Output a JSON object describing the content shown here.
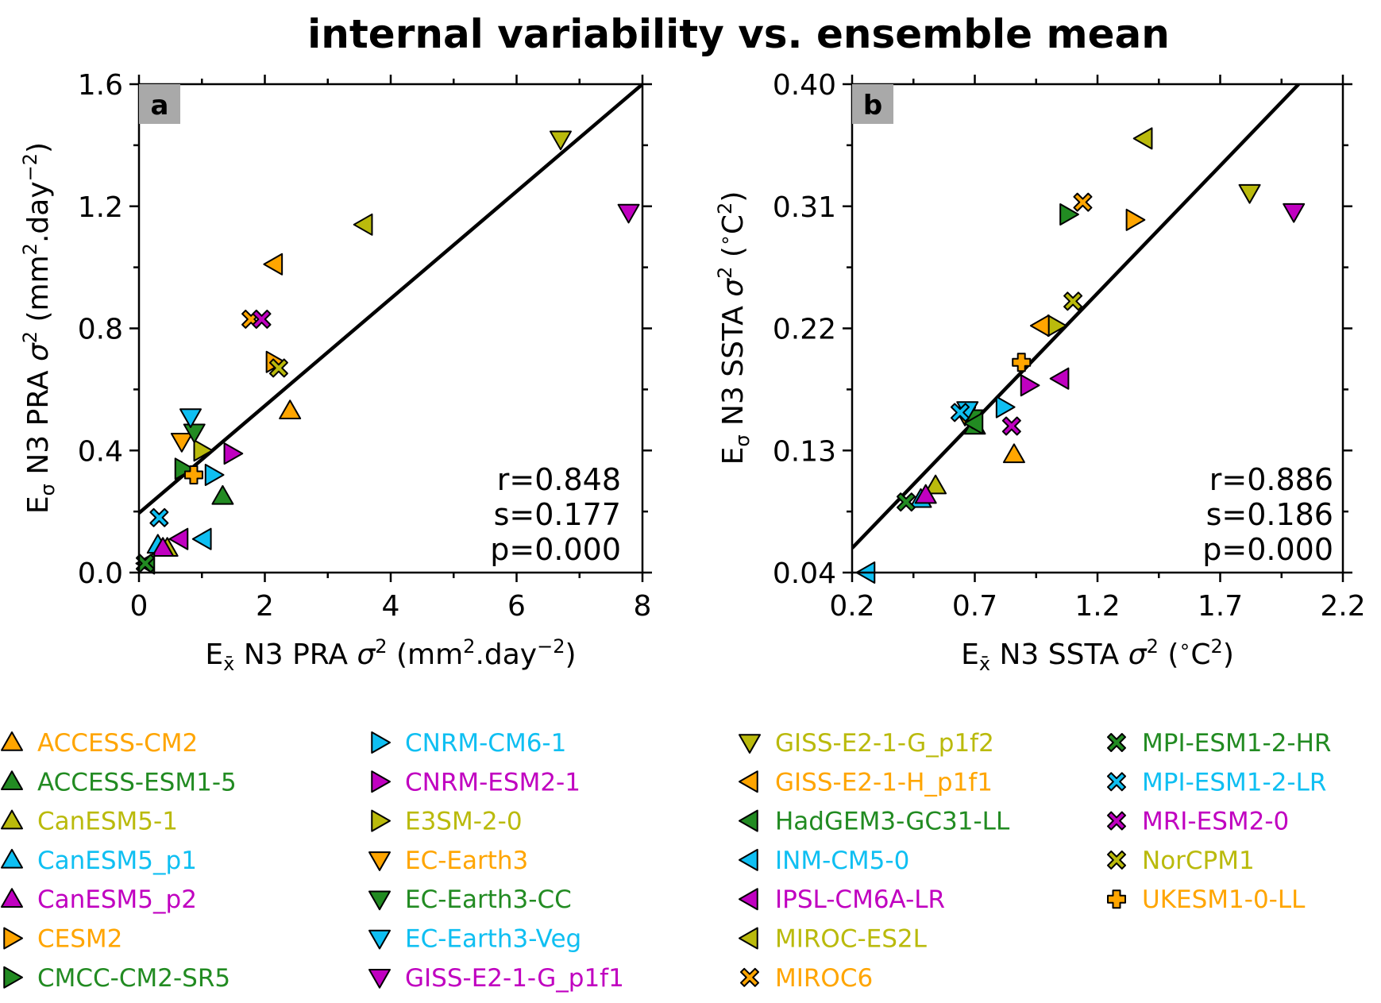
{
  "figure": {
    "title": "internal variability vs. ensemble mean",
    "colors": {
      "orange": "#FFA500",
      "green": "#228B22",
      "olive": "#BABA0C",
      "cyan": "#0FBFF2",
      "magenta": "#C000C0"
    },
    "panels": [
      {
        "letter": "a",
        "xlabel_main": "E",
        "xlabel_sub": "x̄",
        "xlabel_rest": " N3 PRA ",
        "xlabel_sigma": "σ",
        "xlabel_sup": "2",
        "xlabel_units_pre": " (mm",
        "xlabel_units_sup": "2",
        "xlabel_units_mid": ".day",
        "xlabel_units_sup2": "−2",
        "xlabel_units_post": ")",
        "ylabel_main": "E",
        "ylabel_sub": "σ",
        "ylabel_rest": " N3 PRA ",
        "ylabel_sigma": "σ",
        "ylabel_sup": "2",
        "ylabel_units_pre": " (mm",
        "ylabel_units_sup": "2",
        "ylabel_units_mid": ".day",
        "ylabel_units_sup2": "−2",
        "ylabel_units_post": ")",
        "stats": {
          "r": "r=0.848",
          "s": "s=0.177",
          "p": "p=0.000"
        },
        "xticks": [
          "0",
          "2",
          "4",
          "6",
          "8"
        ],
        "yticks": [
          "0.0",
          "0.4",
          "0.8",
          "1.2",
          "1.6"
        ]
      },
      {
        "letter": "b",
        "xlabel_main": "E",
        "xlabel_sub": "x̄",
        "xlabel_rest": " N3 SSTA ",
        "xlabel_sigma": "σ",
        "xlabel_sup": "2",
        "xlabel_units_pre": " (",
        "xlabel_units_sup": "∘",
        "xlabel_units_mid": "C",
        "xlabel_units_sup2": "2",
        "xlabel_units_post": ")",
        "ylabel_main": "E",
        "ylabel_sub": "σ",
        "ylabel_rest": " N3 SSTA ",
        "ylabel_sigma": "σ",
        "ylabel_sup": "2",
        "ylabel_units_pre": " (",
        "ylabel_units_sup": "∘",
        "ylabel_units_mid": "C",
        "ylabel_units_sup2": "2",
        "ylabel_units_post": ")",
        "stats": {
          "r": "r=0.886",
          "s": "s=0.186",
          "p": "p=0.000"
        },
        "xticks": [
          "0.2",
          "0.7",
          "1.2",
          "1.7",
          "2.2"
        ],
        "yticks": [
          "0.04",
          "0.13",
          "0.22",
          "0.31",
          "0.40"
        ]
      }
    ]
  },
  "chart_data": [
    {
      "type": "scatter",
      "panel": "a",
      "xlim": [
        0,
        8
      ],
      "ylim": [
        0,
        1.6
      ],
      "xticks": [
        0,
        2,
        4,
        6,
        8
      ],
      "yticks": [
        0,
        0.4,
        0.8,
        1.2,
        1.6
      ],
      "fit_line": {
        "x": [
          0,
          8
        ],
        "y": [
          0.195,
          1.6
        ]
      },
      "points": [
        {
          "model": "ACCESS-CM2",
          "x": 2.4,
          "y": 0.53
        },
        {
          "model": "ACCESS-ESM1-5",
          "x": 1.33,
          "y": 0.25
        },
        {
          "model": "CanESM5-1",
          "x": 0.45,
          "y": 0.08
        },
        {
          "model": "CanESM5_p1",
          "x": 0.3,
          "y": 0.09
        },
        {
          "model": "CanESM5_p2",
          "x": 0.38,
          "y": 0.08
        },
        {
          "model": "CESM2",
          "x": 2.15,
          "y": 0.69
        },
        {
          "model": "CMCC-CM2-SR5",
          "x": 0.7,
          "y": 0.34
        },
        {
          "model": "CNRM-CM6-1",
          "x": 1.18,
          "y": 0.32
        },
        {
          "model": "CNRM-ESM2-1",
          "x": 1.48,
          "y": 0.39
        },
        {
          "model": "E3SM-2-0",
          "x": 1.0,
          "y": 0.4
        },
        {
          "model": "EC-Earth3",
          "x": 0.68,
          "y": 0.43
        },
        {
          "model": "EC-Earth3-CC",
          "x": 0.88,
          "y": 0.46
        },
        {
          "model": "EC-Earth3-Veg",
          "x": 0.82,
          "y": 0.51
        },
        {
          "model": "GISS-E2-1-G_p1f1",
          "x": 7.78,
          "y": 1.18
        },
        {
          "model": "GISS-E2-1-G_p1f2",
          "x": 6.7,
          "y": 1.42
        },
        {
          "model": "GISS-E2-1-H_p1f1",
          "x": 2.15,
          "y": 1.01
        },
        {
          "model": "HadGEM3-GC31-LL",
          "x": 0.12,
          "y": 0.03
        },
        {
          "model": "INM-CM5-0",
          "x": 1.02,
          "y": 0.11
        },
        {
          "model": "IPSL-CM6A-LR",
          "x": 0.65,
          "y": 0.11
        },
        {
          "model": "MIROC-ES2L",
          "x": 3.58,
          "y": 1.14
        },
        {
          "model": "MIROC6",
          "x": 1.78,
          "y": 0.83
        },
        {
          "model": "MPI-ESM1-2-HR",
          "x": 0.1,
          "y": 0.03
        },
        {
          "model": "MPI-ESM1-2-LR",
          "x": 0.32,
          "y": 0.18
        },
        {
          "model": "MRI-ESM2-0",
          "x": 1.95,
          "y": 0.83
        },
        {
          "model": "NorCPM1",
          "x": 2.22,
          "y": 0.67
        },
        {
          "model": "UKESM1-0-LL",
          "x": 0.87,
          "y": 0.32
        }
      ]
    },
    {
      "type": "scatter",
      "panel": "b",
      "xlim": [
        0.2,
        2.2
      ],
      "ylim": [
        0.04,
        0.4
      ],
      "xticks": [
        0.2,
        0.7,
        1.2,
        1.7,
        2.2
      ],
      "yticks": [
        0.04,
        0.13,
        0.22,
        0.31,
        0.4
      ],
      "fit_line": {
        "x": [
          0.2,
          2.02
        ],
        "y": [
          0.058,
          0.4
        ]
      },
      "points": [
        {
          "model": "ACCESS-CM2",
          "x": 0.86,
          "y": 0.127
        },
        {
          "model": "ACCESS-ESM1-5",
          "x": 0.7,
          "y": 0.148
        },
        {
          "model": "CanESM5-1",
          "x": 0.54,
          "y": 0.104
        },
        {
          "model": "CanESM5_p1",
          "x": 0.48,
          "y": 0.094
        },
        {
          "model": "CanESM5_p2",
          "x": 0.5,
          "y": 0.097
        },
        {
          "model": "CESM2",
          "x": 1.35,
          "y": 0.3
        },
        {
          "model": "CMCC-CM2-SR5",
          "x": 1.08,
          "y": 0.304
        },
        {
          "model": "CNRM-CM6-1",
          "x": 0.82,
          "y": 0.162
        },
        {
          "model": "CNRM-ESM2-1",
          "x": 0.92,
          "y": 0.178
        },
        {
          "model": "E3SM-2-0",
          "x": 1.03,
          "y": 0.222
        },
        {
          "model": "EC-Earth3",
          "x": 0.66,
          "y": 0.156
        },
        {
          "model": "EC-Earth3-CC",
          "x": 0.69,
          "y": 0.154
        },
        {
          "model": "EC-Earth3-Veg",
          "x": 0.67,
          "y": 0.16
        },
        {
          "model": "GISS-E2-1-G_p1f1",
          "x": 2.0,
          "y": 0.306
        },
        {
          "model": "GISS-E2-1-G_p1f2",
          "x": 1.82,
          "y": 0.32
        },
        {
          "model": "GISS-E2-1-H_p1f1",
          "x": 0.97,
          "y": 0.222
        },
        {
          "model": "HadGEM3-GC31-LL",
          "x": 0.7,
          "y": 0.15
        },
        {
          "model": "INM-CM5-0",
          "x": 0.26,
          "y": 0.04
        },
        {
          "model": "IPSL-CM6A-LR",
          "x": 1.05,
          "y": 0.183
        },
        {
          "model": "MIROC-ES2L",
          "x": 1.39,
          "y": 0.36
        },
        {
          "model": "MIROC6",
          "x": 1.14,
          "y": 0.313
        },
        {
          "model": "MPI-ESM1-2-HR",
          "x": 0.42,
          "y": 0.092
        },
        {
          "model": "MPI-ESM1-2-LR",
          "x": 0.64,
          "y": 0.158
        },
        {
          "model": "MRI-ESM2-0",
          "x": 0.85,
          "y": 0.148
        },
        {
          "model": "NorCPM1",
          "x": 1.1,
          "y": 0.24
        },
        {
          "model": "UKESM1-0-LL",
          "x": 0.89,
          "y": 0.195
        }
      ]
    }
  ],
  "legend": [
    {
      "model": "ACCESS-CM2",
      "marker": "triangle-up",
      "color": "#FFA500"
    },
    {
      "model": "ACCESS-ESM1-5",
      "marker": "triangle-up",
      "color": "#228B22"
    },
    {
      "model": "CanESM5-1",
      "marker": "triangle-up",
      "color": "#BABA0C"
    },
    {
      "model": "CanESM5_p1",
      "marker": "triangle-up",
      "color": "#0FBFF2"
    },
    {
      "model": "CanESM5_p2",
      "marker": "triangle-up",
      "color": "#C000C0"
    },
    {
      "model": "CESM2",
      "marker": "triangle-right",
      "color": "#FFA500"
    },
    {
      "model": "CMCC-CM2-SR5",
      "marker": "triangle-right",
      "color": "#228B22"
    },
    {
      "model": "CNRM-CM6-1",
      "marker": "triangle-right",
      "color": "#0FBFF2"
    },
    {
      "model": "CNRM-ESM2-1",
      "marker": "triangle-right",
      "color": "#C000C0"
    },
    {
      "model": "E3SM-2-0",
      "marker": "triangle-right",
      "color": "#BABA0C"
    },
    {
      "model": "EC-Earth3",
      "marker": "triangle-down",
      "color": "#FFA500"
    },
    {
      "model": "EC-Earth3-CC",
      "marker": "triangle-down",
      "color": "#228B22"
    },
    {
      "model": "EC-Earth3-Veg",
      "marker": "triangle-down",
      "color": "#0FBFF2"
    },
    {
      "model": "GISS-E2-1-G_p1f1",
      "marker": "triangle-down",
      "color": "#C000C0"
    },
    {
      "model": "GISS-E2-1-G_p1f2",
      "marker": "triangle-down",
      "color": "#BABA0C"
    },
    {
      "model": "GISS-E2-1-H_p1f1",
      "marker": "triangle-left",
      "color": "#FFA500"
    },
    {
      "model": "HadGEM3-GC31-LL",
      "marker": "triangle-left",
      "color": "#228B22"
    },
    {
      "model": "INM-CM5-0",
      "marker": "triangle-left",
      "color": "#0FBFF2"
    },
    {
      "model": "IPSL-CM6A-LR",
      "marker": "triangle-left",
      "color": "#C000C0"
    },
    {
      "model": "MIROC-ES2L",
      "marker": "triangle-left",
      "color": "#BABA0C"
    },
    {
      "model": "MIROC6",
      "marker": "x",
      "color": "#FFA500"
    },
    {
      "model": "MPI-ESM1-2-HR",
      "marker": "x",
      "color": "#228B22"
    },
    {
      "model": "MPI-ESM1-2-LR",
      "marker": "x",
      "color": "#0FBFF2"
    },
    {
      "model": "MRI-ESM2-0",
      "marker": "x",
      "color": "#C000C0"
    },
    {
      "model": "NorCPM1",
      "marker": "x",
      "color": "#BABA0C"
    },
    {
      "model": "UKESM1-0-LL",
      "marker": "plus",
      "color": "#FFA500"
    }
  ]
}
